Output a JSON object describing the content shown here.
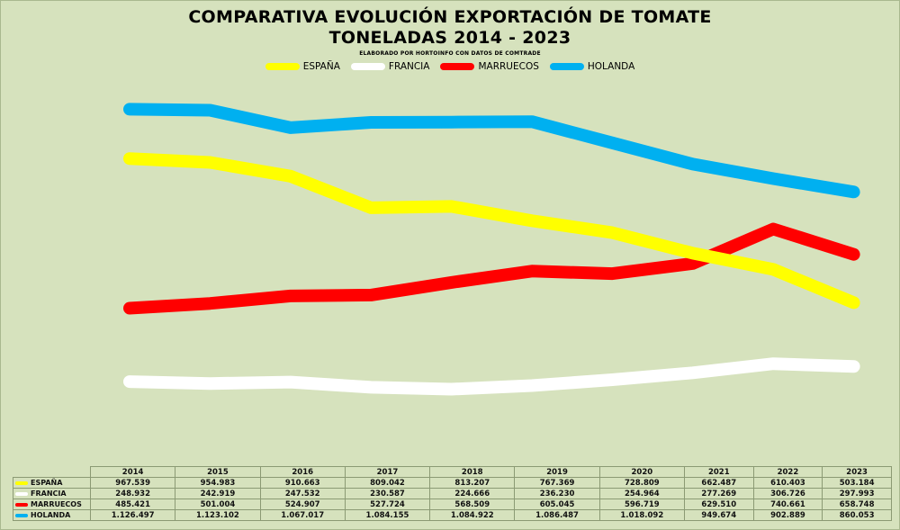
{
  "chart_data": {
    "type": "line",
    "title": "COMPARATIVA EVOLUCIÓN EXPORTACIÓN DE TOMATE",
    "subtitle": "TONELADAS 2014 - 2023",
    "note": "ELABORADO POR HORTOINFO CON DATOS DE  COMTRADE",
    "categories": [
      "2014",
      "2015",
      "2016",
      "2017",
      "2018",
      "2019",
      "2020",
      "2021",
      "2022",
      "2023"
    ],
    "ylim": [
      0,
      1300000
    ],
    "legend_position": "top-center",
    "series": [
      {
        "name": "ESPAÑA",
        "color": "#ffff00",
        "values": [
          967539,
          954983,
          910663,
          809042,
          813207,
          767369,
          728809,
          662487,
          610403,
          503184
        ],
        "labels": [
          "967.539",
          "954.983",
          "910.663",
          "809.042",
          "813.207",
          "767.369",
          "728.809",
          "662.487",
          "610.403",
          "503.184"
        ]
      },
      {
        "name": "FRANCIA",
        "color": "#ffffff",
        "values": [
          248932,
          242919,
          247532,
          230587,
          224666,
          236230,
          254964,
          277269,
          306726,
          297993
        ],
        "labels": [
          "248.932",
          "242.919",
          "247.532",
          "230.587",
          "224.666",
          "236.230",
          "254.964",
          "277.269",
          "306.726",
          "297.993"
        ]
      },
      {
        "name": "MARRUECOS",
        "color": "#ff0000",
        "values": [
          485421,
          501004,
          524907,
          527724,
          568509,
          605045,
          596719,
          629510,
          740661,
          658748
        ],
        "labels": [
          "485.421",
          "501.004",
          "524.907",
          "527.724",
          "568.509",
          "605.045",
          "596.719",
          "629.510",
          "740.661",
          "658.748"
        ]
      },
      {
        "name": "HOLANDA",
        "color": "#00b0f0",
        "values": [
          1126497,
          1123102,
          1067017,
          1084155,
          1084922,
          1086487,
          1018092,
          949674,
          902889,
          860053
        ],
        "labels": [
          "1.126.497",
          "1.123.102",
          "1.067.017",
          "1.084.155",
          "1.084.922",
          "1.086.487",
          "1.018.092",
          "949.674",
          "902.889",
          "860.053"
        ]
      }
    ]
  }
}
